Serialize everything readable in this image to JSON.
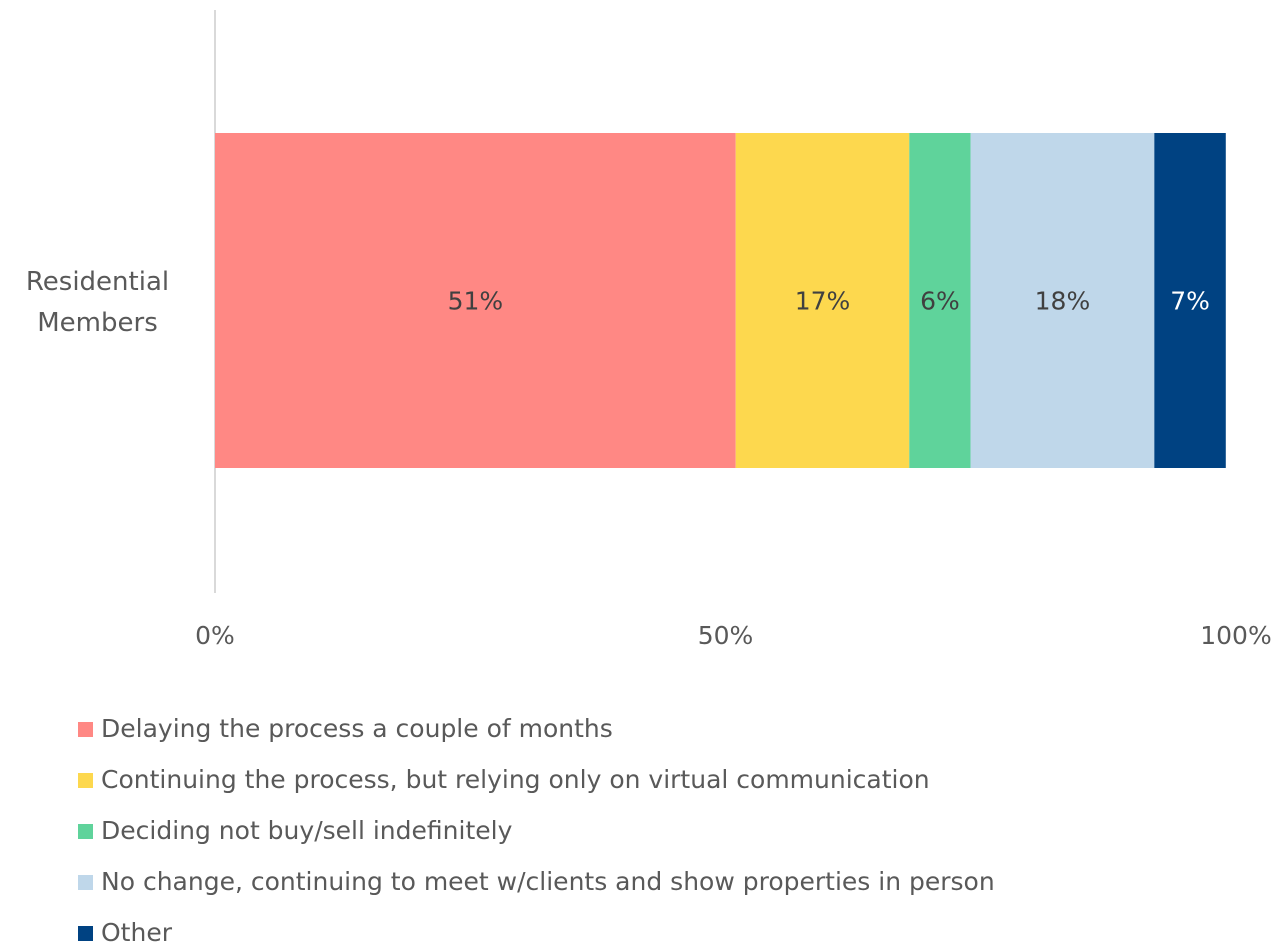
{
  "chart_data": {
    "type": "stacked_bar_horizontal",
    "categories": [
      "Residential Members"
    ],
    "series": [
      {
        "name": "Delaying the process a couple of months",
        "color": "#ff8884",
        "values": [
          51
        ],
        "value_labels": [
          "51%"
        ]
      },
      {
        "name": "Continuing the process, but relying only on virtual communication",
        "color": "#fdd84e",
        "values": [
          17
        ],
        "value_labels": [
          "17%"
        ]
      },
      {
        "name": "Deciding not buy/sell indefinitely",
        "color": "#5fd39b",
        "values": [
          6
        ],
        "value_labels": [
          "6%"
        ]
      },
      {
        "name": "No change, continuing to meet w/clients and show properties in person",
        "color": "#bfd7ea",
        "values": [
          18
        ],
        "value_labels": [
          "18%"
        ]
      },
      {
        "name": "Other",
        "color": "#004282",
        "values": [
          7
        ],
        "value_labels": [
          "7%"
        ]
      }
    ],
    "xlim": [
      0,
      100
    ],
    "xticks": [
      {
        "value": 0,
        "label": "0%"
      },
      {
        "value": 50,
        "label": "50%"
      },
      {
        "value": 100,
        "label": "100%"
      }
    ],
    "legend": "bottom"
  }
}
